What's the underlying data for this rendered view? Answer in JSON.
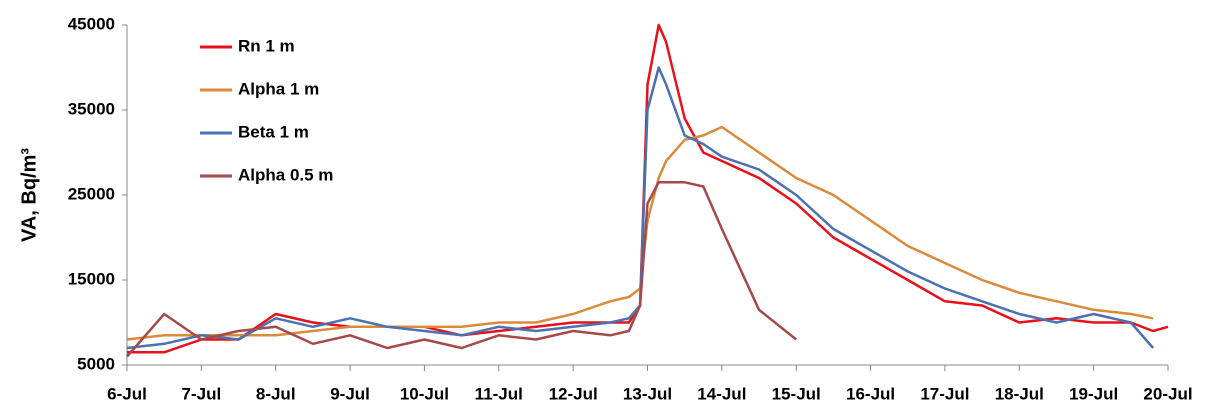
{
  "chart_data": {
    "type": "line",
    "y_label": "VA, Bq/m³",
    "x": [
      6,
      6.5,
      7,
      7.5,
      8,
      8.5,
      9,
      9.5,
      10,
      10.5,
      11,
      11.5,
      12,
      12.5,
      12.75,
      12.9,
      13,
      13.15,
      13.25,
      13.5,
      13.75,
      14,
      14.5,
      15,
      15.5,
      16,
      16.5,
      17,
      17.5,
      18,
      18.5,
      19,
      19.5,
      19.8,
      20
    ],
    "series": [
      {
        "name": "Rn 1 m",
        "color": "#e8101a",
        "values": [
          6500,
          6500,
          8000,
          8000,
          11000,
          10000,
          9500,
          9500,
          9500,
          8500,
          9000,
          9500,
          10000,
          10000,
          10000,
          12000,
          38000,
          45000,
          43000,
          34000,
          30000,
          29000,
          27000,
          24000,
          20000,
          17500,
          15000,
          12500,
          12000,
          10000,
          10500,
          10000,
          10000,
          9000,
          9500
        ]
      },
      {
        "name": "Alpha 1 m",
        "color": "#d98a3b",
        "values": [
          8000,
          8500,
          8500,
          8500,
          8500,
          9000,
          9500,
          9500,
          9500,
          9500,
          10000,
          10000,
          11000,
          12500,
          13000,
          14000,
          22000,
          27000,
          29000,
          31500,
          32000,
          33000,
          30000,
          27000,
          25000,
          22000,
          19000,
          17000,
          15000,
          13500,
          12500,
          11500,
          11000,
          10500,
          null
        ]
      },
      {
        "name": "Beta 1 m",
        "color": "#4a72b0",
        "values": [
          7000,
          7500,
          8500,
          8000,
          10500,
          9500,
          10500,
          9500,
          9000,
          8500,
          9500,
          9000,
          9500,
          10000,
          10500,
          12000,
          35000,
          40000,
          38000,
          32000,
          31000,
          29500,
          28000,
          25000,
          21000,
          18500,
          16000,
          14000,
          12500,
          11000,
          10000,
          11000,
          10000,
          7000,
          null
        ]
      },
      {
        "name": "Alpha 0.5 m",
        "color": "#a54a4a",
        "values": [
          6000,
          11000,
          8000,
          9000,
          9500,
          7500,
          8500,
          7000,
          8000,
          7000,
          8500,
          8000,
          9000,
          8500,
          9000,
          12000,
          24000,
          26500,
          26500,
          26500,
          26000,
          21000,
          11500,
          8000,
          null,
          null,
          null,
          null,
          null,
          null,
          null,
          null,
          null,
          null,
          null
        ]
      }
    ],
    "xlim": [
      6,
      20
    ],
    "xticks": [
      {
        "value": 6,
        "label": "6-Jul"
      },
      {
        "value": 7,
        "label": "7-Jul"
      },
      {
        "value": 8,
        "label": "8-Jul"
      },
      {
        "value": 9,
        "label": "9-Jul"
      },
      {
        "value": 10,
        "label": "10-Jul"
      },
      {
        "value": 11,
        "label": "11-Jul"
      },
      {
        "value": 12,
        "label": "12-Jul"
      },
      {
        "value": 13,
        "label": "13-Jul"
      },
      {
        "value": 14,
        "label": "14-Jul"
      },
      {
        "value": 15,
        "label": "15-Jul"
      },
      {
        "value": 16,
        "label": "16-Jul"
      },
      {
        "value": 17,
        "label": "17-Jul"
      },
      {
        "value": 18,
        "label": "18-Jul"
      },
      {
        "value": 19,
        "label": "19-Jul"
      },
      {
        "value": 20,
        "label": "20-Jul"
      }
    ],
    "ylim": [
      5000,
      45000
    ],
    "yticks": [
      5000,
      15000,
      25000,
      35000,
      45000
    ],
    "legend": "upper-left"
  }
}
